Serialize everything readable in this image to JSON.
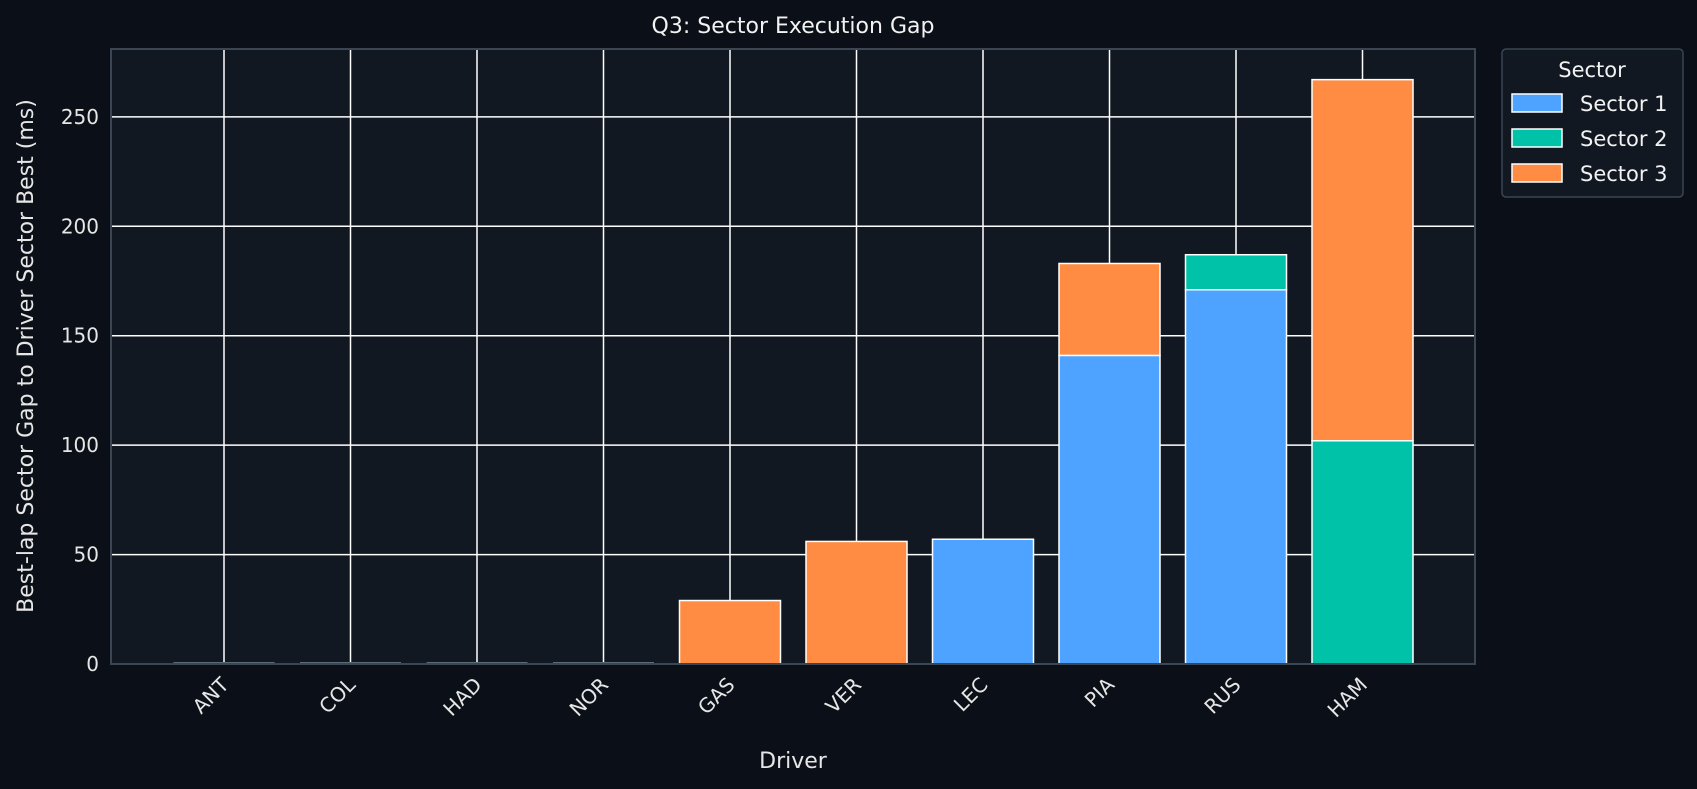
{
  "chart_data": {
    "type": "bar",
    "stacked": true,
    "title": "Q3: Sector Execution Gap",
    "xlabel": "Driver",
    "ylabel": "Best-lap Sector Gap to Driver Sector Best (ms)",
    "categories": [
      "ANT",
      "COL",
      "HAD",
      "NOR",
      "GAS",
      "VER",
      "LEC",
      "PIA",
      "RUS",
      "HAM"
    ],
    "ylim": [
      0,
      281
    ],
    "yticks": [
      0,
      50,
      100,
      150,
      200,
      250
    ],
    "grid": true,
    "legend": {
      "title": "Sector",
      "placement": "outside-top-right"
    },
    "series": [
      {
        "name": "Sector 1",
        "color": "#4da3ff",
        "values": [
          0,
          0,
          0,
          0,
          0,
          0,
          57,
          141,
          171,
          0
        ]
      },
      {
        "name": "Sector 2",
        "color": "#00c2a8",
        "values": [
          0,
          0,
          0,
          0,
          0,
          0,
          0,
          0,
          16,
          102
        ]
      },
      {
        "name": "Sector 3",
        "color": "#ff8c42",
        "values": [
          0,
          0,
          0,
          0,
          29,
          56,
          0,
          42,
          0,
          165
        ]
      }
    ],
    "colors": {
      "page_background": "#0b0f17",
      "plot_background": "#111821",
      "grid": "#ffffff",
      "spine": "#3b4652",
      "bar_edge": "#ffffff"
    }
  }
}
